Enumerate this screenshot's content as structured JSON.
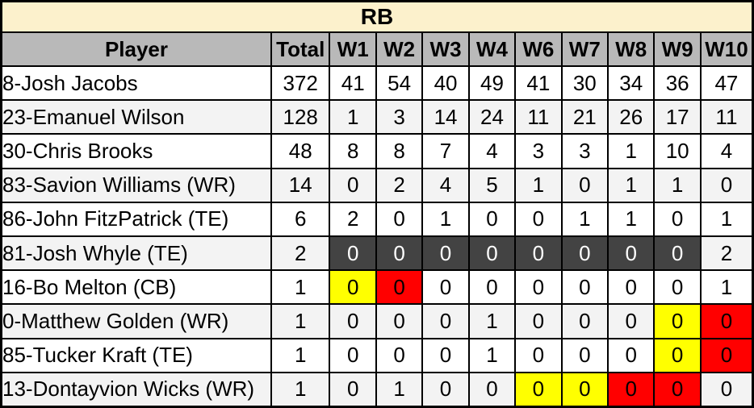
{
  "title": "RB",
  "columns": [
    "Player",
    "Total",
    "W1",
    "W2",
    "W3",
    "W4",
    "W6",
    "W7",
    "W8",
    "W9",
    "W10"
  ],
  "rows": [
    {
      "player": "8-Josh Jacobs",
      "total": "372",
      "values": [
        {
          "v": "41"
        },
        {
          "v": "54"
        },
        {
          "v": "40"
        },
        {
          "v": "49"
        },
        {
          "v": "41"
        },
        {
          "v": "30"
        },
        {
          "v": "34"
        },
        {
          "v": "36"
        },
        {
          "v": "47"
        }
      ]
    },
    {
      "player": "23-Emanuel Wilson",
      "total": "128",
      "values": [
        {
          "v": "1"
        },
        {
          "v": "3"
        },
        {
          "v": "14"
        },
        {
          "v": "24"
        },
        {
          "v": "11"
        },
        {
          "v": "21"
        },
        {
          "v": "26"
        },
        {
          "v": "17"
        },
        {
          "v": "11"
        }
      ]
    },
    {
      "player": "30-Chris Brooks",
      "total": "48",
      "values": [
        {
          "v": "8"
        },
        {
          "v": "8"
        },
        {
          "v": "7"
        },
        {
          "v": "4"
        },
        {
          "v": "3"
        },
        {
          "v": "3"
        },
        {
          "v": "1"
        },
        {
          "v": "10"
        },
        {
          "v": "4"
        }
      ]
    },
    {
      "player": "83-Savion Williams (WR)",
      "total": "14",
      "values": [
        {
          "v": "0"
        },
        {
          "v": "2"
        },
        {
          "v": "4"
        },
        {
          "v": "5"
        },
        {
          "v": "1"
        },
        {
          "v": "0"
        },
        {
          "v": "1"
        },
        {
          "v": "1"
        },
        {
          "v": "0"
        }
      ]
    },
    {
      "player": "86-John FitzPatrick (TE)",
      "total": "6",
      "values": [
        {
          "v": "2"
        },
        {
          "v": "0"
        },
        {
          "v": "1"
        },
        {
          "v": "0"
        },
        {
          "v": "0"
        },
        {
          "v": "1"
        },
        {
          "v": "1"
        },
        {
          "v": "0"
        },
        {
          "v": "1"
        }
      ]
    },
    {
      "player": "81-Josh Whyle (TE)",
      "total": "2",
      "values": [
        {
          "v": "0",
          "s": "dark"
        },
        {
          "v": "0",
          "s": "dark"
        },
        {
          "v": "0",
          "s": "dark"
        },
        {
          "v": "0",
          "s": "dark"
        },
        {
          "v": "0",
          "s": "dark"
        },
        {
          "v": "0",
          "s": "dark"
        },
        {
          "v": "0",
          "s": "dark"
        },
        {
          "v": "0",
          "s": "dark"
        },
        {
          "v": "2"
        }
      ]
    },
    {
      "player": "16-Bo Melton (CB)",
      "total": "1",
      "values": [
        {
          "v": "0",
          "s": "yellow"
        },
        {
          "v": "0",
          "s": "red"
        },
        {
          "v": "0"
        },
        {
          "v": "0"
        },
        {
          "v": "0"
        },
        {
          "v": "0"
        },
        {
          "v": "0"
        },
        {
          "v": "0"
        },
        {
          "v": "1"
        }
      ]
    },
    {
      "player": "0-Matthew Golden (WR)",
      "total": "1",
      "values": [
        {
          "v": "0"
        },
        {
          "v": "0"
        },
        {
          "v": "0"
        },
        {
          "v": "1"
        },
        {
          "v": "0"
        },
        {
          "v": "0"
        },
        {
          "v": "0"
        },
        {
          "v": "0",
          "s": "yellow"
        },
        {
          "v": "0",
          "s": "red"
        }
      ]
    },
    {
      "player": "85-Tucker Kraft (TE)",
      "total": "1",
      "values": [
        {
          "v": "0"
        },
        {
          "v": "0"
        },
        {
          "v": "0"
        },
        {
          "v": "1"
        },
        {
          "v": "0"
        },
        {
          "v": "0"
        },
        {
          "v": "0"
        },
        {
          "v": "0",
          "s": "yellow"
        },
        {
          "v": "0",
          "s": "red"
        }
      ]
    },
    {
      "player": "13-Dontayvion Wicks (WR)",
      "total": "1",
      "values": [
        {
          "v": "0"
        },
        {
          "v": "1"
        },
        {
          "v": "0"
        },
        {
          "v": "0"
        },
        {
          "v": "0",
          "s": "yellow"
        },
        {
          "v": "0",
          "s": "yellow"
        },
        {
          "v": "0",
          "s": "red"
        },
        {
          "v": "0",
          "s": "red"
        },
        {
          "v": "0"
        }
      ]
    }
  ],
  "colors": {
    "title_bg": "#FCF1CC",
    "header_bg": "#B9B9B9",
    "alt_row_bg": "#F3F3F3",
    "dark_cell_bg": "#434343",
    "dark_cell_text": "#FFFFFF",
    "highlight_yellow": "#FFFF00",
    "highlight_red": "#FF0000",
    "border": "#000000"
  }
}
